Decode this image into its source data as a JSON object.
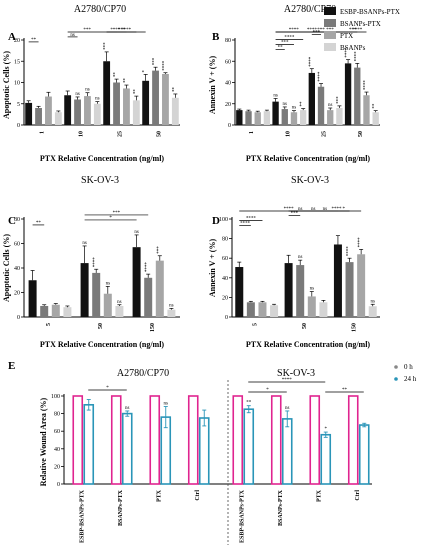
{
  "legend": [
    {
      "label": "ESBP-BSANPs-PTX",
      "color": "#111111"
    },
    {
      "label": "BSANPs-PTX",
      "color": "#7a7a7a"
    },
    {
      "label": "PTX",
      "color": "#a6a6a6"
    },
    {
      "label": "BSANPs",
      "color": "#d4d4d4"
    }
  ],
  "wound_legend": [
    "0 h",
    "24 h"
  ],
  "chart_data": [
    {
      "panel": "A",
      "type": "bar",
      "title": "A2780/CP70",
      "xlabel": "PTX Relative Concentration (ng/ml)",
      "ylabel": "Apoptotic Cells (%)",
      "ylim": [
        0,
        20
      ],
      "yticks": [
        0,
        5,
        10,
        15,
        20
      ],
      "categories": [
        "1",
        "10",
        "25",
        "50"
      ],
      "series": [
        {
          "name": "ESBP-BSANPs-PTX",
          "values": [
            5.2,
            7.0,
            15.0,
            10.4
          ],
          "errors": [
            0.5,
            1.0,
            2.2,
            1.5
          ],
          "sig": [
            "",
            "",
            "***",
            "*"
          ]
        },
        {
          "name": "BSANPs-PTX",
          "values": [
            4.0,
            6.0,
            10.0,
            12.8
          ],
          "errors": [
            0.4,
            0.6,
            0.8,
            0.8
          ],
          "sig": [
            "",
            "ns",
            "**",
            "***"
          ]
        },
        {
          "name": "PTX",
          "values": [
            6.7,
            6.8,
            8.6,
            12.0
          ],
          "errors": [
            1.0,
            0.8,
            0.8,
            0.3
          ],
          "sig": [
            "",
            "ns",
            "**",
            "****"
          ]
        },
        {
          "name": "BSANPs",
          "values": [
            3.0,
            5.0,
            5.8,
            6.4
          ],
          "errors": [
            0.3,
            0.5,
            1.0,
            0.9
          ],
          "sig": [
            "",
            "ns",
            "**",
            "**"
          ]
        }
      ],
      "brackets": [
        {
          "a": [
            0,
            0
          ],
          "b": [
            0,
            1
          ],
          "label": "**"
        },
        {
          "a": [
            1,
            0
          ],
          "b": [
            1,
            1
          ],
          "label": "ns"
        },
        {
          "a": [
            1,
            0
          ],
          "b": [
            2,
            0
          ],
          "label": "***"
        },
        {
          "a": [
            2,
            0
          ],
          "b": [
            2,
            1
          ],
          "label": "*"
        },
        {
          "a": [
            2,
            0
          ],
          "b": [
            2,
            2
          ],
          "label": "***"
        },
        {
          "a": [
            2,
            0
          ],
          "b": [
            2,
            3
          ],
          "label": "***"
        },
        {
          "a": [
            2,
            0
          ],
          "b": [
            3,
            0
          ],
          "label": "****"
        }
      ]
    },
    {
      "panel": "B",
      "type": "bar",
      "title": "A2780/CP70",
      "xlabel": "PTX Relative Concentration (ng/ml)",
      "ylabel": "Annexin V + (%)",
      "ylim": [
        0,
        80
      ],
      "yticks": [
        0,
        20,
        40,
        60,
        80
      ],
      "categories": [
        "1",
        "10",
        "25",
        "50"
      ],
      "series": [
        {
          "name": "ESBP-BSANPs-PTX",
          "values": [
            14,
            22,
            49,
            58
          ],
          "errors": [
            1.0,
            3.0,
            4.0,
            3.5
          ],
          "sig": [
            "",
            "ns",
            "****",
            "****"
          ]
        },
        {
          "name": "BSANPs-PTX",
          "values": [
            13,
            15,
            36,
            54
          ],
          "errors": [
            1.0,
            2.0,
            3.0,
            4.0
          ],
          "sig": [
            "",
            "ns",
            "****",
            "****"
          ]
        },
        {
          "name": "PTX",
          "values": [
            12,
            12,
            14,
            28
          ],
          "errors": [
            1.0,
            1.5,
            2.0,
            3.0
          ],
          "sig": [
            "",
            "ns",
            "ns",
            "****"
          ]
        },
        {
          "name": "BSANPs",
          "values": [
            13,
            14,
            16,
            12
          ],
          "errors": [
            1.0,
            1.5,
            2.0,
            1.5
          ],
          "sig": [
            "",
            "**",
            "***",
            "**"
          ]
        }
      ],
      "brackets": [
        {
          "a": [
            1,
            0
          ],
          "b": [
            1,
            1
          ],
          "label": "**"
        },
        {
          "a": [
            1,
            0
          ],
          "b": [
            1,
            2
          ],
          "label": "***"
        },
        {
          "a": [
            1,
            0
          ],
          "b": [
            1,
            3
          ],
          "label": "****"
        },
        {
          "a": [
            2,
            0
          ],
          "b": [
            2,
            1
          ],
          "label": "***"
        },
        {
          "a": [
            2,
            0
          ],
          "b": [
            2,
            2
          ],
          "label": "***"
        },
        {
          "a": [
            2,
            0
          ],
          "b": [
            3,
            0
          ],
          "label": "***"
        },
        {
          "a": [
            3,
            0
          ],
          "b": [
            3,
            2
          ],
          "label": "****"
        },
        {
          "a": [
            1,
            0
          ],
          "b": [
            3,
            0
          ],
          "label": "****"
        },
        {
          "a": [
            3,
            0
          ],
          "b": [
            3,
            1
          ],
          "label": "***"
        },
        {
          "a": [
            1,
            0
          ],
          "b": [
            2,
            0
          ],
          "label": "****"
        }
      ]
    },
    {
      "panel": "C",
      "type": "bar",
      "title": "SK-OV-3",
      "xlabel": "PTX Relative Concentration (ng/ml)",
      "ylabel": "Apoptotic Cells (%)",
      "ylim": [
        0,
        80
      ],
      "yticks": [
        0,
        20,
        40,
        60,
        80
      ],
      "categories": [
        "5",
        "50",
        "150"
      ],
      "series": [
        {
          "name": "ESBP-BSANPs-PTX",
          "values": [
            30,
            44,
            57
          ],
          "errors": [
            8,
            14,
            10
          ],
          "sig": [
            "",
            "ns",
            "ns"
          ]
        },
        {
          "name": "BSANPs-PTX",
          "values": [
            9,
            36,
            32
          ],
          "errors": [
            1,
            3,
            3
          ],
          "sig": [
            "",
            "****",
            "****"
          ]
        },
        {
          "name": "PTX",
          "values": [
            10,
            19,
            46
          ],
          "errors": [
            1,
            6,
            4
          ],
          "sig": [
            "",
            "ns",
            "***"
          ]
        },
        {
          "name": "BSANPs",
          "values": [
            8,
            9,
            6
          ],
          "errors": [
            1,
            1,
            1
          ],
          "sig": [
            "",
            "ns",
            "ns"
          ]
        }
      ],
      "brackets": [
        {
          "a": [
            0,
            0
          ],
          "b": [
            0,
            1
          ],
          "label": "**"
        },
        {
          "a": [
            1,
            0
          ],
          "b": [
            2,
            0
          ],
          "label": "*"
        },
        {
          "a": [
            1,
            0
          ],
          "b": [
            2,
            1
          ],
          "label": "***"
        }
      ]
    },
    {
      "panel": "D",
      "type": "bar",
      "title": "SK-OV-3",
      "xlabel": "PTX Relative Concentration (ng/ml)",
      "ylabel": "Annexin V + (%)",
      "ylim": [
        0,
        100
      ],
      "yticks": [
        0,
        20,
        40,
        60,
        80,
        100
      ],
      "categories": [
        "5",
        "50",
        "150"
      ],
      "series": [
        {
          "name": "ESBP-BSANPs-PTX",
          "values": [
            51,
            55,
            74
          ],
          "errors": [
            5,
            8,
            9
          ],
          "sig": [
            "",
            "",
            ""
          ]
        },
        {
          "name": "BSANPs-PTX",
          "values": [
            15,
            53,
            56
          ],
          "errors": [
            1,
            5,
            4
          ],
          "sig": [
            "",
            "ns",
            "****"
          ]
        },
        {
          "name": "PTX",
          "values": [
            15,
            21,
            64
          ],
          "errors": [
            1,
            5,
            5
          ],
          "sig": [
            "",
            "ns",
            "****"
          ]
        },
        {
          "name": "BSANPs",
          "values": [
            12,
            15,
            11
          ],
          "errors": [
            1,
            2,
            2
          ],
          "sig": [
            "",
            "",
            "ns"
          ]
        }
      ],
      "brackets": [
        {
          "a": [
            0,
            0
          ],
          "b": [
            0,
            1
          ],
          "label": "****"
        },
        {
          "a": [
            0,
            0
          ],
          "b": [
            0,
            2
          ],
          "label": "****"
        },
        {
          "a": [
            1,
            0
          ],
          "b": [
            1,
            1
          ],
          "label": "***"
        },
        {
          "a": [
            1,
            0
          ],
          "b": [
            1,
            2
          ],
          "label": "ns"
        },
        {
          "a": [
            2,
            0
          ],
          "b": [
            2,
            1
          ],
          "label": "*"
        },
        {
          "a": [
            1,
            0
          ],
          "b": [
            2,
            0
          ],
          "label": "ns"
        },
        {
          "a": [
            1,
            1
          ],
          "b": [
            2,
            1
          ],
          "label": "ns"
        },
        {
          "a": [
            1,
            2
          ],
          "b": [
            2,
            2
          ],
          "label": "****"
        },
        {
          "a": [
            0,
            0
          ],
          "b": [
            2,
            0
          ],
          "label": "****"
        }
      ]
    },
    {
      "panel": "E",
      "type": "bar",
      "titles": [
        "A2780/CP70",
        "SK-OV-3"
      ],
      "ylabel": "Relative Wound Area (%)",
      "ylim": [
        0,
        100
      ],
      "yticks": [
        0,
        20,
        40,
        60,
        80,
        100
      ],
      "categories": [
        "ESBP-BSANPs-PTX",
        "BSANPs-PTX",
        "PTX",
        "Ctrl",
        "ESBP-BSANPs-PTX",
        "BSANPs-PTX",
        "PTX",
        "Ctrl"
      ],
      "series": [
        {
          "name": "0 h",
          "values": [
            100,
            100,
            100,
            100,
            100,
            100,
            100,
            100
          ]
        },
        {
          "name": "24 h",
          "values": [
            90,
            80,
            76,
            75,
            85,
            74,
            56,
            67
          ],
          "errors": [
            6,
            3,
            12,
            9,
            4,
            9,
            3,
            2
          ],
          "sig": [
            "",
            "ns",
            "ns",
            "",
            "**",
            "ns",
            "*",
            ""
          ]
        }
      ],
      "brackets": [
        {
          "a": 0,
          "b": 1,
          "label": "*"
        },
        {
          "a": 4,
          "b": 5,
          "label": "*"
        },
        {
          "a": 4,
          "b": 6,
          "label": "****"
        },
        {
          "a": 6,
          "b": 7,
          "label": "**"
        }
      ]
    }
  ]
}
